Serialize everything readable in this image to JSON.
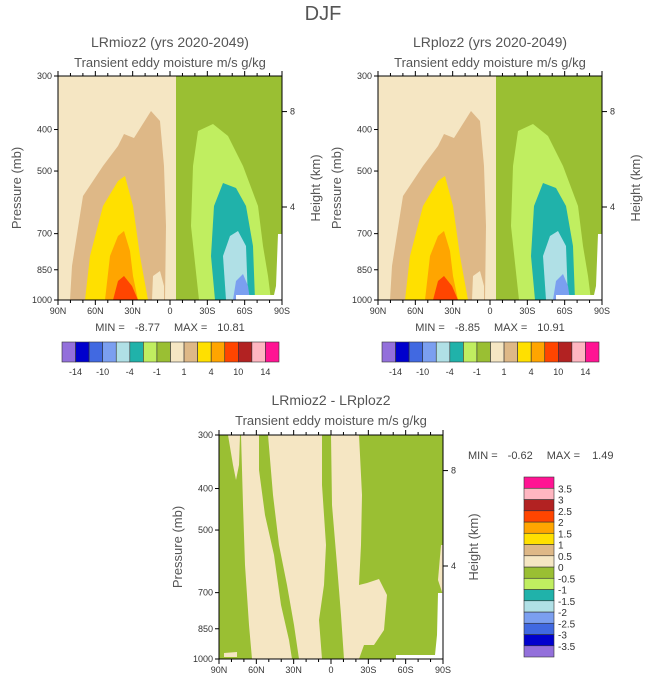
{
  "figure_title": "DJF",
  "chart_data": [
    {
      "type": "contour",
      "title": "LRmioz2 (yrs 2020-2049)",
      "subtitle": "Transient eddy moisture m/s g/kg",
      "ylabel": "Pressure (mb)",
      "ylabel_right": "Height (km)",
      "yticks": [
        300,
        400,
        500,
        700,
        850,
        1000
      ],
      "yticks_right": [
        8,
        4
      ],
      "xticks": [
        "90N",
        "60N",
        "30N",
        "0",
        "30S",
        "60S",
        "90S"
      ],
      "ylim": [
        1000,
        300
      ],
      "min_label": "MIN =",
      "min": "-8.77",
      "max_label": "MAX =",
      "max": "10.81",
      "colorbar": {
        "orientation": "horizontal",
        "colors": [
          "#9370DB",
          "#0000CD",
          "#4169E1",
          "#7B9FF0",
          "#B0E0E6",
          "#20B2AA",
          "#C0EE60",
          "#9ABF33",
          "#F5E6C3",
          "#DEB887",
          "#FFE000",
          "#FFA500",
          "#FF4500",
          "#B22222",
          "#FFB6C1",
          "#FF1493"
        ],
        "labels": [
          "-14",
          "-10",
          "-4",
          "-1",
          "1",
          "4",
          "10",
          "14"
        ]
      }
    },
    {
      "type": "contour",
      "title": "LRploz2 (yrs 2020-2049)",
      "subtitle": "Transient eddy moisture m/s g/kg",
      "ylabel": "Pressure (mb)",
      "ylabel_right": "Height (km)",
      "yticks": [
        300,
        400,
        500,
        700,
        850,
        1000
      ],
      "yticks_right": [
        8,
        4
      ],
      "xticks": [
        "90N",
        "60N",
        "30N",
        "0",
        "30S",
        "60S",
        "90S"
      ],
      "ylim": [
        1000,
        300
      ],
      "min_label": "MIN =",
      "min": "-8.85",
      "max_label": "MAX =",
      "max": "10.91",
      "colorbar": {
        "orientation": "horizontal",
        "colors": [
          "#9370DB",
          "#0000CD",
          "#4169E1",
          "#7B9FF0",
          "#B0E0E6",
          "#20B2AA",
          "#C0EE60",
          "#9ABF33",
          "#F5E6C3",
          "#DEB887",
          "#FFE000",
          "#FFA500",
          "#FF4500",
          "#B22222",
          "#FFB6C1",
          "#FF1493"
        ],
        "labels": [
          "-14",
          "-10",
          "-4",
          "-1",
          "1",
          "4",
          "10",
          "14"
        ]
      }
    },
    {
      "type": "contour",
      "title": "LRmioz2 - LRploz2",
      "subtitle": "Transient eddy moisture m/s g/kg",
      "ylabel": "Pressure (mb)",
      "ylabel_right": "Height (km)",
      "yticks": [
        300,
        400,
        500,
        700,
        850,
        1000
      ],
      "yticks_right": [
        8,
        4
      ],
      "xticks": [
        "90N",
        "60N",
        "30N",
        "0",
        "30S",
        "60S",
        "90S"
      ],
      "ylim": [
        1000,
        300
      ],
      "min_label": "MIN =",
      "min": "-0.62",
      "max_label": "MAX =",
      "max": "1.49",
      "colorbar": {
        "orientation": "vertical",
        "colors": [
          "#9370DB",
          "#0000CD",
          "#4169E1",
          "#7B9FF0",
          "#B0E0E6",
          "#20B2AA",
          "#C0EE60",
          "#9ABF33",
          "#F5E6C3",
          "#DEB887",
          "#FFE000",
          "#FFA500",
          "#FF4500",
          "#B22222",
          "#FFB6C1",
          "#FF1493"
        ],
        "labels": [
          "-3.5",
          "-3",
          "-2.5",
          "-2",
          "-1.5",
          "-1",
          "-0.5",
          "0",
          "0.5",
          "1",
          "1.5",
          "2",
          "2.5",
          "3",
          "3.5"
        ]
      }
    }
  ]
}
